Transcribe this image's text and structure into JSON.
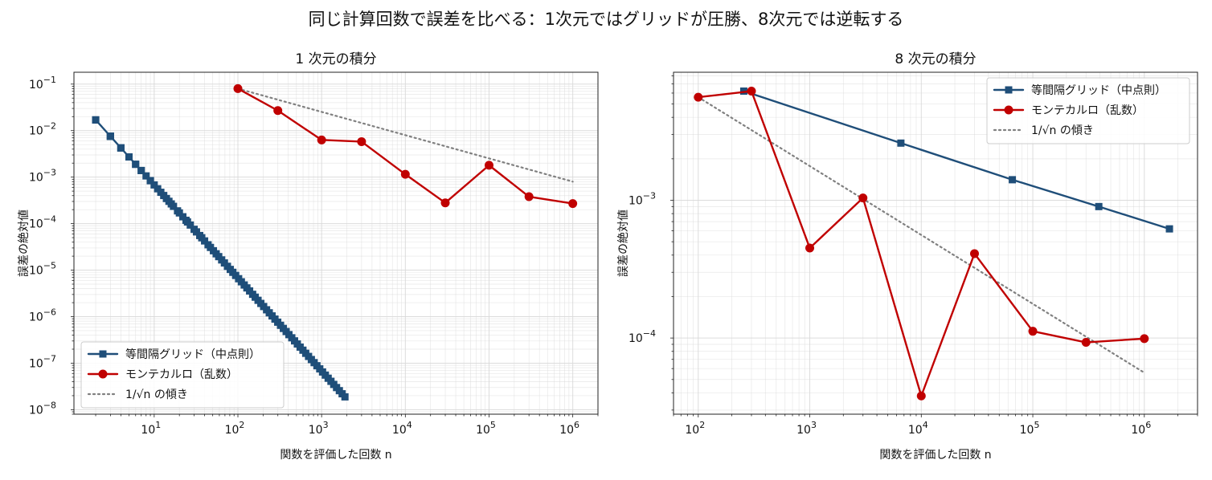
{
  "figure": {
    "suptitle": "同じ計算回数で誤差を比べる：1次元ではグリッドが圧勝、8次元では逆転する"
  },
  "colors": {
    "grid_series": "#1f4e79",
    "mc_series": "#c00000",
    "ref_line": "#808080"
  },
  "chart_data": [
    {
      "type": "line",
      "title": "1 次元の積分",
      "xlabel": "関数を評価した回数 n",
      "ylabel": "誤差の絶対値",
      "xscale": "log",
      "yscale": "log",
      "xlim": [
        1.1,
        2000000
      ],
      "ylim": [
        8e-09,
        0.18
      ],
      "xticks": [
        {
          "value": 10,
          "base": "10",
          "exp": "1"
        },
        {
          "value": 100,
          "base": "10",
          "exp": "2"
        },
        {
          "value": 1000,
          "base": "10",
          "exp": "3"
        },
        {
          "value": 10000,
          "base": "10",
          "exp": "4"
        },
        {
          "value": 100000,
          "base": "10",
          "exp": "5"
        },
        {
          "value": 1000000,
          "base": "10",
          "exp": "6"
        }
      ],
      "yticks": [
        {
          "value": 1e-08,
          "base": "10",
          "exp": "−8"
        },
        {
          "value": 1e-07,
          "base": "10",
          "exp": "−7"
        },
        {
          "value": 1e-06,
          "base": "10",
          "exp": "−6"
        },
        {
          "value": 1e-05,
          "base": "10",
          "exp": "−5"
        },
        {
          "value": 0.0001,
          "base": "10",
          "exp": "−4"
        },
        {
          "value": 0.001,
          "base": "10",
          "exp": "−3"
        },
        {
          "value": 0.01,
          "base": "10",
          "exp": "−2"
        },
        {
          "value": 0.1,
          "base": "10",
          "exp": "−1"
        }
      ],
      "grid": true,
      "legend_position": "lower-left",
      "grid_series_rule": {
        "n_start": 2,
        "n_end": 1900,
        "points": 90,
        "error_at_n2": 0.017,
        "slope": -2
      },
      "series": [
        {
          "name": "等間隔グリッド（中点則）",
          "color": "#1f4e79",
          "marker": "square",
          "style": "solid",
          "x": [],
          "y": []
        },
        {
          "name": "モンテカルロ（乱数）",
          "color": "#c00000",
          "marker": "circle",
          "style": "solid",
          "x": [
            100,
            300,
            1000,
            3000,
            10000,
            30000,
            100000,
            300000,
            1000000
          ],
          "y": [
            0.08,
            0.027,
            0.0063,
            0.0058,
            0.00115,
            0.00028,
            0.0018,
            0.00038,
            0.00027
          ]
        },
        {
          "name": "1/√n の傾き",
          "color": "#808080",
          "marker": "none",
          "style": "dotted",
          "x": [
            100,
            1000000
          ],
          "y": [
            0.08,
            0.0008
          ]
        }
      ]
    },
    {
      "type": "line",
      "title": "8 次元の積分",
      "xlabel": "関数を評価した回数 n",
      "ylabel": "誤差の絶対値",
      "xscale": "log",
      "yscale": "log",
      "xlim": [
        60,
        3000000
      ],
      "ylim": [
        2.8e-05,
        0.0085
      ],
      "xticks": [
        {
          "value": 100,
          "base": "10",
          "exp": "2"
        },
        {
          "value": 1000,
          "base": "10",
          "exp": "3"
        },
        {
          "value": 10000,
          "base": "10",
          "exp": "4"
        },
        {
          "value": 100000,
          "base": "10",
          "exp": "5"
        },
        {
          "value": 1000000,
          "base": "10",
          "exp": "6"
        }
      ],
      "yticks": [
        {
          "value": 0.0001,
          "base": "10",
          "exp": "−4"
        },
        {
          "value": 0.001,
          "base": "10",
          "exp": "−3"
        }
      ],
      "grid": true,
      "legend_position": "top-right",
      "series": [
        {
          "name": "等間隔グリッド（中点則）",
          "color": "#1f4e79",
          "marker": "square",
          "style": "solid",
          "x": [
            256,
            6561,
            65536,
            390625,
            1679616
          ],
          "y": [
            0.0062,
            0.0026,
            0.00141,
            0.0009,
            0.00062
          ]
        },
        {
          "name": "モンテカルロ（乱数）",
          "color": "#c00000",
          "marker": "circle",
          "style": "solid",
          "x": [
            100,
            300,
            1000,
            3000,
            10000,
            30000,
            100000,
            300000,
            1000000
          ],
          "y": [
            0.0056,
            0.0062,
            0.00045,
            0.00104,
            3.8e-05,
            0.00041,
            0.000112,
            9.3e-05,
            9.9e-05
          ]
        },
        {
          "name": "1/√n の傾き",
          "color": "#808080",
          "marker": "none",
          "style": "dotted",
          "x": [
            100,
            1000000
          ],
          "y": [
            0.0056,
            5.6e-05
          ]
        }
      ]
    }
  ]
}
